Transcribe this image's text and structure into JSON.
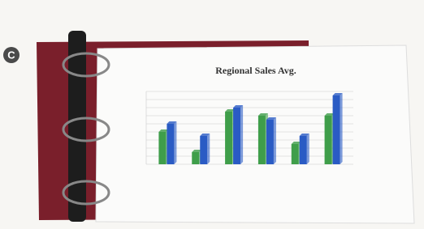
{
  "badge": "C",
  "chart_data": {
    "type": "bar",
    "title": "Regional Sales Avg.",
    "categories": [
      null,
      null,
      null,
      null,
      null,
      null
    ],
    "series": [
      {
        "color": "#3f9e4a",
        "values": [
          4.0,
          1.5,
          6.5,
          6.0,
          2.5,
          6.0
        ]
      },
      {
        "color": "#2a5bc4",
        "values": [
          5.0,
          3.5,
          7.0,
          5.5,
          3.5,
          8.5
        ]
      }
    ],
    "ylim": [
      0,
      9
    ]
  }
}
